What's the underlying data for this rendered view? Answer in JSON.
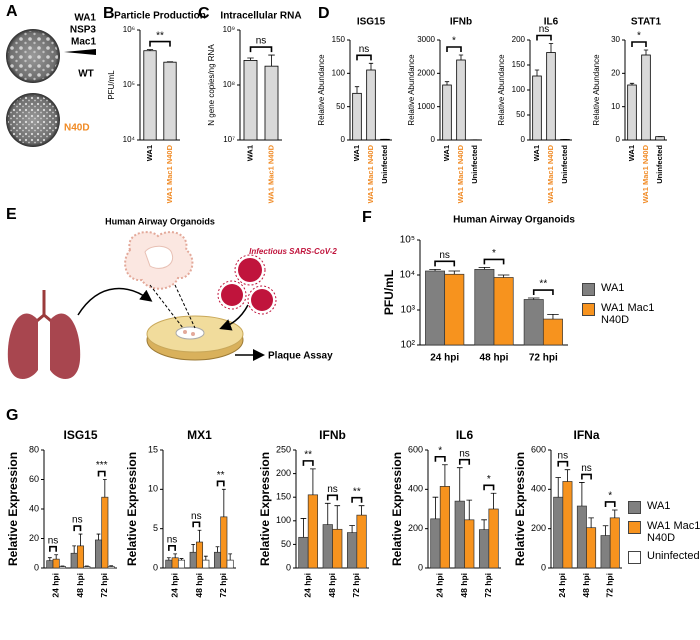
{
  "panel_a": {
    "letter": "A",
    "construct": [
      "WA1",
      "NSP3",
      "Mac1"
    ],
    "rows": [
      "WT",
      "N40D"
    ]
  },
  "panel_e": {
    "letter": "E",
    "title": "Human Airway Organoids",
    "virus": "Infectious SARS-CoV-2",
    "assay": "Plaque Assay"
  },
  "chart_data": [
    {
      "type": "bar",
      "panel": "B",
      "title": "Particle Production",
      "y_label": "PFU/mL",
      "log": true,
      "categories": [
        "WA1",
        "WA1 Mac1 N40D"
      ],
      "category_colors": [
        "#000000",
        "#f08a24"
      ],
      "color": "#d9d9d9",
      "values": [
        420000,
        260000
      ],
      "errors": [
        20000,
        5000
      ],
      "ylim": [
        10000,
        1000000
      ],
      "yticks": [
        {
          "value": 10000,
          "label": "10⁴"
        },
        {
          "value": 100000,
          "label": "10⁵"
        },
        {
          "value": 1000000,
          "label": "10⁶"
        }
      ],
      "significance": "**"
    },
    {
      "type": "bar",
      "panel": "C",
      "title": "Intracellular RNA",
      "y_label": "N gene copies/ng RNA",
      "log": true,
      "categories": [
        "WA1",
        "WA1 Mac1 N40D"
      ],
      "category_colors": [
        "#000000",
        "#f08a24"
      ],
      "color": "#d9d9d9",
      "values": [
        280000000,
        220000000
      ],
      "errors": [
        30000000,
        130000000
      ],
      "ylim": [
        10000000,
        1000000000
      ],
      "yticks": [
        {
          "value": 10000000,
          "label": "10⁷"
        },
        {
          "value": 100000000,
          "label": "10⁸"
        },
        {
          "value": 1000000000,
          "label": "10⁹"
        }
      ],
      "significance": "ns"
    },
    {
      "type": "bar",
      "panel": "D",
      "title": "ISG15",
      "y_label": "Relative Abundance",
      "categories": [
        "WA1",
        "WA1 Mac1 N40D",
        "Uninfected"
      ],
      "category_colors": [
        "#000000",
        "#f08a24",
        "#000000"
      ],
      "color": "#d9d9d9",
      "values": [
        70,
        105,
        1
      ],
      "errors": [
        10,
        10,
        0
      ],
      "ylim": [
        0,
        150
      ],
      "yticks": [
        0,
        50,
        100,
        150
      ],
      "significance": "ns"
    },
    {
      "type": "bar",
      "title": "IFNb",
      "y_label": "Relative Abundance",
      "categories": [
        "WA1",
        "WA1 Mac1 N40D",
        "Uninfected"
      ],
      "category_colors": [
        "#000000",
        "#f08a24",
        "#000000"
      ],
      "color": "#d9d9d9",
      "values": [
        1650,
        2400,
        5
      ],
      "errors": [
        100,
        150,
        0
      ],
      "ylim": [
        0,
        3000
      ],
      "yticks": [
        0,
        1000,
        2000,
        3000
      ],
      "significance": "*"
    },
    {
      "type": "bar",
      "title": "IL6",
      "y_label": "Relative Abundance",
      "categories": [
        "WA1",
        "WA1 Mac1 N40D",
        "Uninfected"
      ],
      "category_colors": [
        "#000000",
        "#f08a24",
        "#000000"
      ],
      "color": "#d9d9d9",
      "values": [
        128,
        175,
        1
      ],
      "errors": [
        12,
        18,
        0
      ],
      "ylim": [
        0,
        200
      ],
      "yticks": [
        0,
        50,
        100,
        150,
        200
      ],
      "significance": "ns"
    },
    {
      "type": "bar",
      "title": "STAT1",
      "y_label": "Relative Abundance",
      "categories": [
        "WA1",
        "WA1 Mac1 N40D",
        "Uninfected"
      ],
      "category_colors": [
        "#000000",
        "#f08a24",
        "#000000"
      ],
      "color": "#d9d9d9",
      "values": [
        16.5,
        25.5,
        1
      ],
      "errors": [
        0.5,
        1.5,
        0
      ],
      "ylim": [
        0,
        30
      ],
      "yticks": [
        0,
        10,
        20,
        30
      ],
      "significance": "*"
    },
    {
      "type": "bar",
      "panel": "F",
      "title": "Human Airway Organoids",
      "y_label": "PFU/mL",
      "log": true,
      "categories": [
        "24 hpi",
        "48 hpi",
        "72 hpi"
      ],
      "series": [
        {
          "name": "WA1",
          "color": "#808080",
          "values": [
            13000,
            14500,
            2000
          ],
          "errors": [
            1500,
            2000,
            200
          ]
        },
        {
          "name": "WA1 Mac1 N40D",
          "color": "#f7931e",
          "values": [
            10500,
            8500,
            550
          ],
          "errors": [
            2500,
            1500,
            200
          ]
        }
      ],
      "ylim": [
        100,
        100000
      ],
      "yticks": [
        {
          "value": 100,
          "label": "10²"
        },
        {
          "value": 1000,
          "label": "10³"
        },
        {
          "value": 10000,
          "label": "10⁴"
        },
        {
          "value": 100000,
          "label": "10⁵"
        }
      ],
      "significance": [
        "ns",
        "*",
        "**"
      ]
    },
    {
      "type": "bar",
      "panel": "G",
      "title": "ISG15",
      "y_label": "Relative Expression",
      "categories": [
        "24 hpi",
        "48 hpi",
        "72 hpi"
      ],
      "series": [
        {
          "name": "WA1",
          "color": "#808080",
          "values": [
            5,
            10,
            19
          ],
          "errors": [
            2,
            5,
            4
          ]
        },
        {
          "name": "WA1 Mac1 N40D",
          "color": "#f7931e",
          "values": [
            6,
            15,
            48
          ],
          "errors": [
            3,
            8,
            12
          ]
        },
        {
          "name": "Uninfected",
          "color": "#ffffff",
          "values": [
            1,
            1,
            1
          ],
          "errors": [
            0.3,
            0.3,
            0.5
          ]
        }
      ],
      "ylim": [
        0,
        80
      ],
      "yticks": [
        0,
        20,
        40,
        60,
        80
      ],
      "significance": [
        "ns",
        "ns",
        "***"
      ]
    },
    {
      "type": "bar",
      "title": "MX1",
      "y_label": "Relative Expression",
      "categories": [
        "24 hpi",
        "48 hpi",
        "72 hpi"
      ],
      "series": [
        {
          "name": "WA1",
          "color": "#808080",
          "values": [
            1,
            2,
            2
          ],
          "errors": [
            0.3,
            1,
            0.7
          ]
        },
        {
          "name": "WA1 Mac1 N40D",
          "color": "#f7931e",
          "values": [
            1.3,
            3.3,
            6.5
          ],
          "errors": [
            0.5,
            1.5,
            3.5
          ]
        },
        {
          "name": "Uninfected",
          "color": "#ffffff",
          "values": [
            1,
            1,
            1
          ],
          "errors": [
            0.2,
            0.5,
            0.8
          ]
        }
      ],
      "ylim": [
        0,
        15
      ],
      "yticks": [
        0,
        5,
        10,
        15
      ],
      "significance": [
        "ns",
        "ns",
        "**"
      ]
    },
    {
      "type": "bar",
      "title": "IFNb",
      "y_label": "Relative Expression",
      "categories": [
        "24 hpi",
        "48 hpi",
        "72 hpi"
      ],
      "series": [
        {
          "name": "WA1",
          "color": "#808080",
          "values": [
            65,
            92,
            75
          ],
          "errors": [
            40,
            45,
            15
          ]
        },
        {
          "name": "WA1 Mac1 N40D",
          "color": "#f7931e",
          "values": [
            155,
            82,
            112
          ],
          "errors": [
            55,
            50,
            20
          ]
        }
      ],
      "ylim": [
        0,
        250
      ],
      "yticks": [
        0,
        50,
        100,
        150,
        200,
        250
      ],
      "significance": [
        "**",
        "ns",
        "**"
      ]
    },
    {
      "type": "bar",
      "title": "IL6",
      "y_label": "Relative Expression",
      "categories": [
        "24 hpi",
        "48 hpi",
        "72 hpi"
      ],
      "series": [
        {
          "name": "WA1",
          "color": "#808080",
          "values": [
            250,
            340,
            195
          ],
          "errors": [
            110,
            170,
            50
          ]
        },
        {
          "name": "WA1 Mac1 N40D",
          "color": "#f7931e",
          "values": [
            415,
            245,
            300
          ],
          "errors": [
            110,
            100,
            80
          ]
        }
      ],
      "ylim": [
        0,
        600
      ],
      "yticks": [
        0,
        200,
        400,
        600
      ],
      "significance": [
        "*",
        "ns",
        "*"
      ]
    },
    {
      "type": "bar",
      "title": "IFNa",
      "y_label": "Relative Expression",
      "categories": [
        "24 hpi",
        "48 hpi",
        "72 hpi"
      ],
      "series": [
        {
          "name": "WA1",
          "color": "#808080",
          "values": [
            360,
            315,
            165
          ],
          "errors": [
            100,
            120,
            50
          ]
        },
        {
          "name": "WA1 Mac1 N40D",
          "color": "#f7931e",
          "values": [
            440,
            205,
            255
          ],
          "errors": [
            60,
            50,
            40
          ]
        }
      ],
      "ylim": [
        0,
        600
      ],
      "yticks": [
        0,
        200,
        400,
        600
      ],
      "significance": [
        "ns",
        "ns",
        "*"
      ]
    }
  ]
}
